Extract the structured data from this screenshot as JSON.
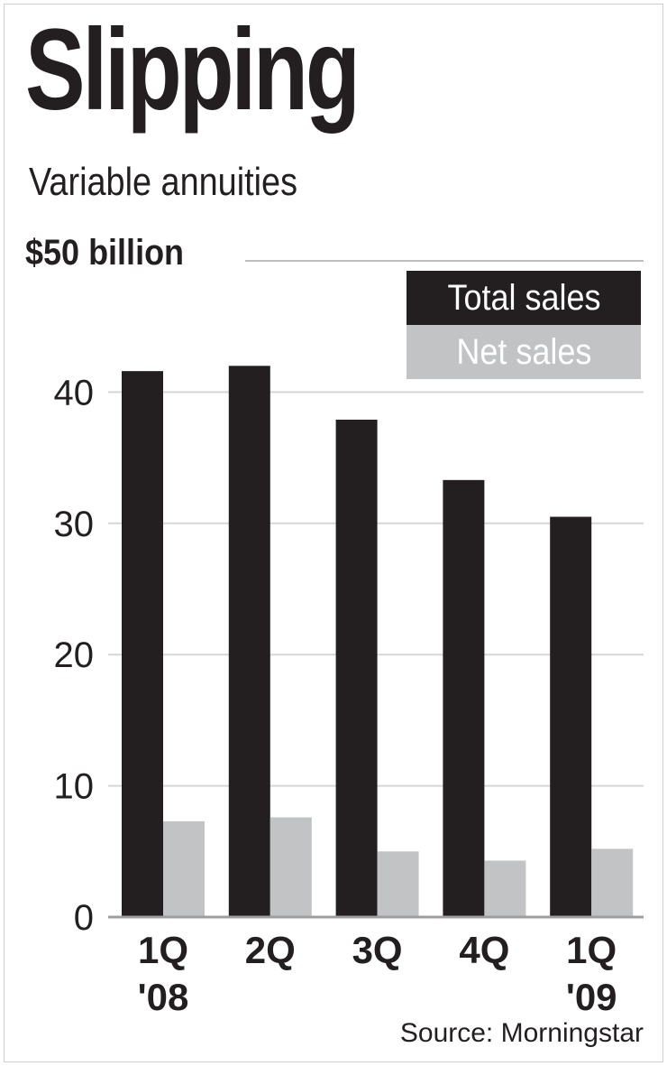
{
  "chart_data": {
    "type": "bar",
    "title": "Slipping",
    "subtitle": "Variable annuities",
    "unit_label": "$50 billion",
    "categories": [
      [
        "1Q",
        "'08"
      ],
      [
        "2Q",
        ""
      ],
      [
        "3Q",
        ""
      ],
      [
        "4Q",
        ""
      ],
      [
        "1Q",
        "'09"
      ]
    ],
    "series": [
      {
        "name": "Total sales",
        "color": "#231f20",
        "values": [
          41.6,
          42.0,
          37.9,
          33.3,
          30.5
        ]
      },
      {
        "name": "Net sales",
        "color": "#c2c3c5",
        "values": [
          7.3,
          7.6,
          5.0,
          4.3,
          5.2
        ]
      }
    ],
    "yticks": [
      0,
      10,
      20,
      30,
      40
    ],
    "ylim": [
      0,
      50
    ],
    "grid": true,
    "legend_position": "top-right",
    "source": "Source: Morningstar"
  }
}
